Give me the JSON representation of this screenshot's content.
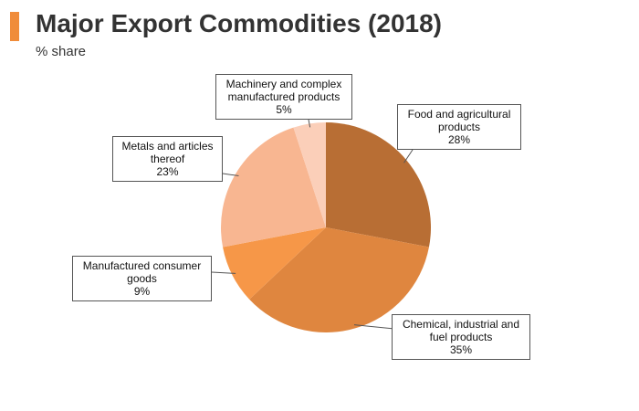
{
  "header": {
    "title": "Major Export Commodities (2018)",
    "subtitle": "% share",
    "accent_color": "#f08c3a"
  },
  "chart_data": {
    "type": "pie",
    "title": "Major Export Commodities (2018)",
    "unit": "% share",
    "slices": [
      {
        "name_lines": [
          "Food and agricultural",
          "products"
        ],
        "value": 28,
        "label": "28%",
        "color": "#b86e34"
      },
      {
        "name_lines": [
          "Chemical, industrial and",
          "fuel products"
        ],
        "value": 35,
        "label": "35%",
        "color": "#df863f"
      },
      {
        "name_lines": [
          "Manufactured consumer",
          "goods"
        ],
        "value": 9,
        "label": "9%",
        "color": "#f69748"
      },
      {
        "name_lines": [
          "Metals and articles",
          "thereof"
        ],
        "value": 23,
        "label": "23%",
        "color": "#f8b691"
      },
      {
        "name_lines": [
          "Machinery and complex",
          "manufactured products"
        ],
        "value": 5,
        "label": "5%",
        "color": "#fbcfb9"
      }
    ]
  }
}
